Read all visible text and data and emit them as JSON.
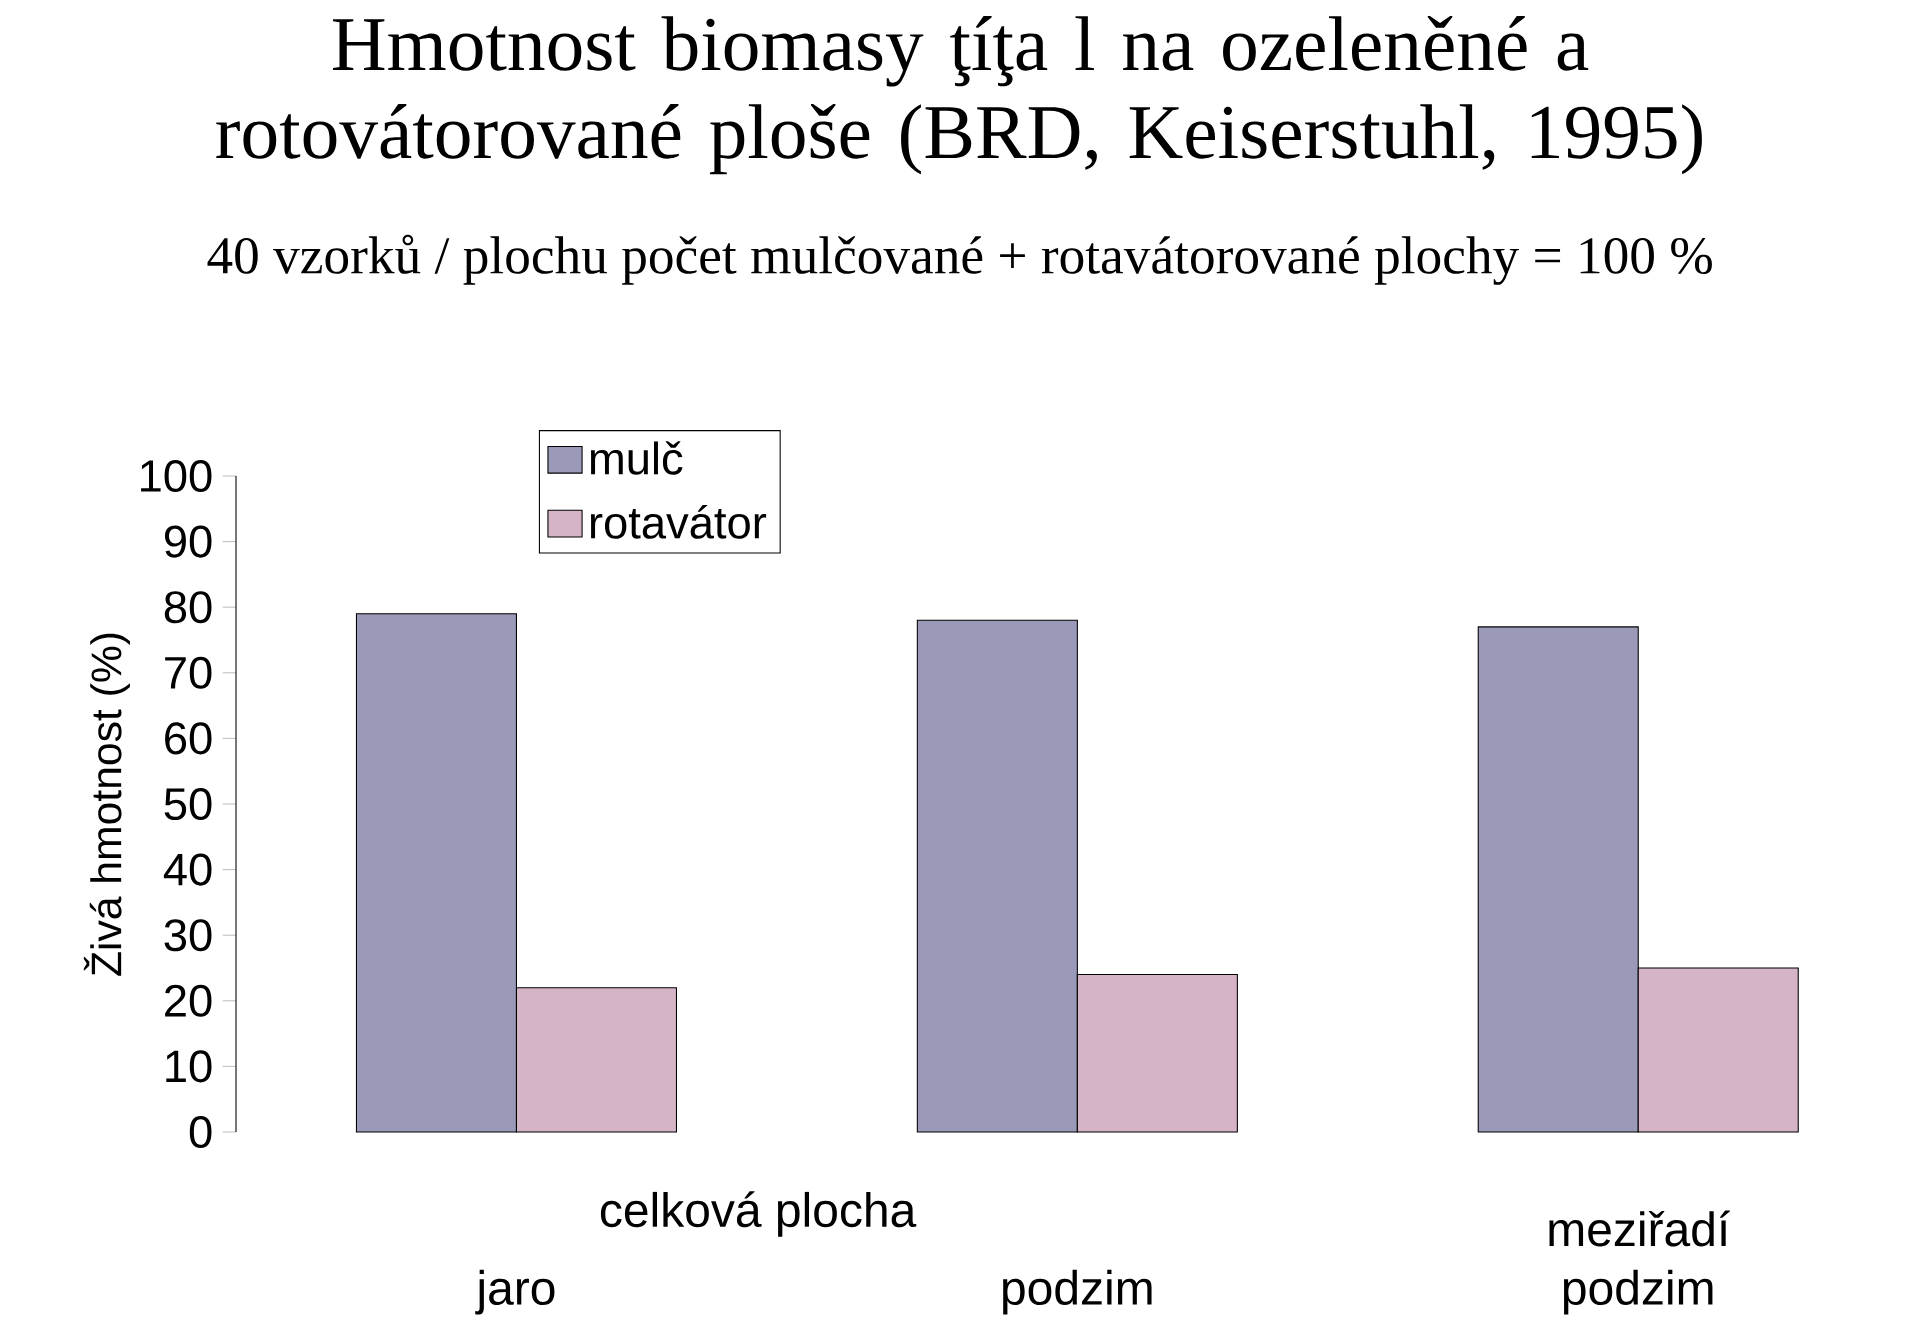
{
  "chart_data": {
    "type": "bar",
    "title": "Hmotnost biomasy ţíţa l na ozeleněné a rotovátorované ploše (BRD, Keiserstuhl, 1995)",
    "subtitle": "40 vzorků / plochu počet mulčované + rotavátorované plochy = 100 %",
    "ylabel": "Živá hmotnost (%)",
    "categories": [
      "jaro",
      "podzim",
      "meziřadí podzim"
    ],
    "annotations": [
      "celková plocha"
    ],
    "series": [
      {
        "name": "mulč",
        "color": "#9a9ab8",
        "values": [
          79,
          78,
          77
        ]
      },
      {
        "name": "rotavátor",
        "color": "#d6b4c8",
        "values": [
          22,
          24,
          25
        ]
      }
    ],
    "ylim": [
      0,
      100
    ],
    "yticks": [
      0,
      10,
      20,
      30,
      40,
      50,
      60,
      70,
      80,
      90,
      100
    ],
    "legend": "top",
    "grid": false
  }
}
